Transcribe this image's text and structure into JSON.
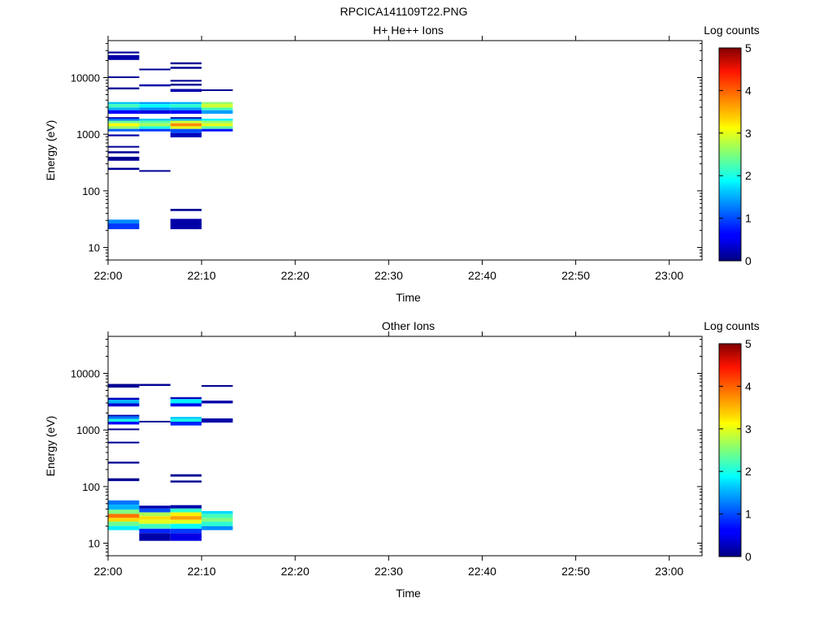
{
  "figure_title": "RPCICA141109T22.PNG",
  "chart_data": [
    {
      "type": "heatmap",
      "title": "H+ He++ Ions",
      "xlabel": "Time",
      "ylabel": "Energy (eV)",
      "yscale": "log",
      "ylim": [
        6,
        45000
      ],
      "xlim_minutes": [
        0,
        63.5
      ],
      "x_ticks": [
        "22:00",
        "22:10",
        "22:20",
        "22:30",
        "22:40",
        "22:50",
        "23:00"
      ],
      "y_ticks": [
        "10",
        "100",
        "1000",
        "10000"
      ],
      "colorbar": {
        "label": "Log counts",
        "min": 0,
        "max": 5,
        "ticks": [
          "0",
          "1",
          "2",
          "3",
          "4",
          "5"
        ],
        "colormap": "jet"
      },
      "cells": [
        {
          "t0": "22:00",
          "t1": "22:03:20",
          "e_lo": 26800,
          "e_hi": 28800,
          "log_counts": 0.1
        },
        {
          "t0": "22:00",
          "t1": "22:03:20",
          "e_lo": 20500,
          "e_hi": 25000,
          "log_counts": 0.2
        },
        {
          "t0": "22:00",
          "t1": "22:03:20",
          "e_lo": 9900,
          "e_hi": 10500,
          "log_counts": 0.1
        },
        {
          "t0": "22:00",
          "t1": "22:03:20",
          "e_lo": 6200,
          "e_hi": 6700,
          "log_counts": 0.1
        },
        {
          "t0": "22:00",
          "t1": "22:03:20",
          "e_lo": 3400,
          "e_hi": 3700,
          "log_counts": 1.6
        },
        {
          "t0": "22:00",
          "t1": "22:03:20",
          "e_lo": 2950,
          "e_hi": 3400,
          "log_counts": 2.2
        },
        {
          "t0": "22:00",
          "t1": "22:03:20",
          "e_lo": 2650,
          "e_hi": 2950,
          "log_counts": 1.5
        },
        {
          "t0": "22:00",
          "t1": "22:03:20",
          "e_lo": 2300,
          "e_hi": 2650,
          "log_counts": 0.6
        },
        {
          "t0": "22:00",
          "t1": "22:03:20",
          "e_lo": 1880,
          "e_hi": 2000,
          "log_counts": 0.3
        },
        {
          "t0": "22:00",
          "t1": "22:03:20",
          "e_lo": 1730,
          "e_hi": 1880,
          "log_counts": 1.2
        },
        {
          "t0": "22:00",
          "t1": "22:03:20",
          "e_lo": 1560,
          "e_hi": 1730,
          "log_counts": 2.4
        },
        {
          "t0": "22:00",
          "t1": "22:03:20",
          "e_lo": 1380,
          "e_hi": 1560,
          "log_counts": 3.1
        },
        {
          "t0": "22:00",
          "t1": "22:03:20",
          "e_lo": 1240,
          "e_hi": 1380,
          "log_counts": 2.6
        },
        {
          "t0": "22:00",
          "t1": "22:03:20",
          "e_lo": 1120,
          "e_hi": 1240,
          "log_counts": 1.1
        },
        {
          "t0": "22:00",
          "t1": "22:03:20",
          "e_lo": 920,
          "e_hi": 990,
          "log_counts": 0.2
        },
        {
          "t0": "22:00",
          "t1": "22:03:20",
          "e_lo": 580,
          "e_hi": 620,
          "log_counts": 0.1
        },
        {
          "t0": "22:00",
          "t1": "22:03:20",
          "e_lo": 460,
          "e_hi": 500,
          "log_counts": 0.1
        },
        {
          "t0": "22:00",
          "t1": "22:03:20",
          "e_lo": 340,
          "e_hi": 400,
          "log_counts": 0.1
        },
        {
          "t0": "22:00",
          "t1": "22:03:20",
          "e_lo": 235,
          "e_hi": 255,
          "log_counts": 0.1
        },
        {
          "t0": "22:00",
          "t1": "22:03:20",
          "e_lo": 26.5,
          "e_hi": 31,
          "log_counts": 1.3
        },
        {
          "t0": "22:00",
          "t1": "22:03:20",
          "e_lo": 21,
          "e_hi": 26.5,
          "log_counts": 0.9
        },
        {
          "t0": "22:03:20",
          "t1": "22:06:40",
          "e_lo": 13600,
          "e_hi": 14400,
          "log_counts": 0.1
        },
        {
          "t0": "22:03:20",
          "t1": "22:06:40",
          "e_lo": 7000,
          "e_hi": 7600,
          "log_counts": 0.2
        },
        {
          "t0": "22:03:20",
          "t1": "22:06:40",
          "e_lo": 3400,
          "e_hi": 3700,
          "log_counts": 1.4
        },
        {
          "t0": "22:03:20",
          "t1": "22:06:40",
          "e_lo": 2950,
          "e_hi": 3400,
          "log_counts": 1.9
        },
        {
          "t0": "22:03:20",
          "t1": "22:06:40",
          "e_lo": 2650,
          "e_hi": 2950,
          "log_counts": 1.3
        },
        {
          "t0": "22:03:20",
          "t1": "22:06:40",
          "e_lo": 2300,
          "e_hi": 2650,
          "log_counts": 0.5
        },
        {
          "t0": "22:03:20",
          "t1": "22:06:40",
          "e_lo": 1730,
          "e_hi": 1880,
          "log_counts": 1.6
        },
        {
          "t0": "22:03:20",
          "t1": "22:06:40",
          "e_lo": 1560,
          "e_hi": 1730,
          "log_counts": 2.3
        },
        {
          "t0": "22:03:20",
          "t1": "22:06:40",
          "e_lo": 1380,
          "e_hi": 1560,
          "log_counts": 2.7
        },
        {
          "t0": "22:03:20",
          "t1": "22:06:40",
          "e_lo": 1240,
          "e_hi": 1380,
          "log_counts": 2.0
        },
        {
          "t0": "22:03:20",
          "t1": "22:06:40",
          "e_lo": 1120,
          "e_hi": 1240,
          "log_counts": 0.9
        },
        {
          "t0": "22:03:20",
          "t1": "22:06:40",
          "e_lo": 218,
          "e_hi": 232,
          "log_counts": 0.1
        },
        {
          "t0": "22:06:40",
          "t1": "22:10",
          "e_lo": 17200,
          "e_hi": 18600,
          "log_counts": 0.1
        },
        {
          "t0": "22:06:40",
          "t1": "22:10",
          "e_lo": 14300,
          "e_hi": 15500,
          "log_counts": 0.1
        },
        {
          "t0": "22:06:40",
          "t1": "22:10",
          "e_lo": 8500,
          "e_hi": 9100,
          "log_counts": 0.1
        },
        {
          "t0": "22:06:40",
          "t1": "22:10",
          "e_lo": 7200,
          "e_hi": 7800,
          "log_counts": 0.1
        },
        {
          "t0": "22:06:40",
          "t1": "22:10",
          "e_lo": 5600,
          "e_hi": 6300,
          "log_counts": 0.2
        },
        {
          "t0": "22:06:40",
          "t1": "22:10",
          "e_lo": 3400,
          "e_hi": 3700,
          "log_counts": 1.5
        },
        {
          "t0": "22:06:40",
          "t1": "22:10",
          "e_lo": 2950,
          "e_hi": 3400,
          "log_counts": 2.1
        },
        {
          "t0": "22:06:40",
          "t1": "22:10",
          "e_lo": 2650,
          "e_hi": 2950,
          "log_counts": 1.4
        },
        {
          "t0": "22:06:40",
          "t1": "22:10",
          "e_lo": 2300,
          "e_hi": 2650,
          "log_counts": 0.6
        },
        {
          "t0": "22:06:40",
          "t1": "22:10",
          "e_lo": 1880,
          "e_hi": 2000,
          "log_counts": 0.2
        },
        {
          "t0": "22:06:40",
          "t1": "22:10",
          "e_lo": 1730,
          "e_hi": 1880,
          "log_counts": 1.5
        },
        {
          "t0": "22:06:40",
          "t1": "22:10",
          "e_lo": 1560,
          "e_hi": 1730,
          "log_counts": 2.9
        },
        {
          "t0": "22:06:40",
          "t1": "22:10",
          "e_lo": 1380,
          "e_hi": 1560,
          "log_counts": 3.7
        },
        {
          "t0": "22:06:40",
          "t1": "22:10",
          "e_lo": 1240,
          "e_hi": 1380,
          "log_counts": 3.0
        },
        {
          "t0": "22:06:40",
          "t1": "22:10",
          "e_lo": 1050,
          "e_hi": 1240,
          "log_counts": 1.0
        },
        {
          "t0": "22:06:40",
          "t1": "22:10",
          "e_lo": 880,
          "e_hi": 1050,
          "log_counts": 0.3
        },
        {
          "t0": "22:06:40",
          "t1": "22:10",
          "e_lo": 44,
          "e_hi": 48,
          "log_counts": 0.1
        },
        {
          "t0": "22:06:40",
          "t1": "22:10",
          "e_lo": 21,
          "e_hi": 32,
          "log_counts": 0.2
        },
        {
          "t0": "22:10",
          "t1": "22:13:20",
          "e_lo": 5800,
          "e_hi": 6200,
          "log_counts": 0.1
        },
        {
          "t0": "22:10",
          "t1": "22:13:20",
          "e_lo": 3400,
          "e_hi": 3700,
          "log_counts": 2.6
        },
        {
          "t0": "22:10",
          "t1": "22:13:20",
          "e_lo": 2950,
          "e_hi": 3400,
          "log_counts": 2.9
        },
        {
          "t0": "22:10",
          "t1": "22:13:20",
          "e_lo": 2650,
          "e_hi": 2950,
          "log_counts": 2.2
        },
        {
          "t0": "22:10",
          "t1": "22:13:20",
          "e_lo": 2300,
          "e_hi": 2650,
          "log_counts": 1.4
        },
        {
          "t0": "22:10",
          "t1": "22:13:20",
          "e_lo": 1730,
          "e_hi": 1880,
          "log_counts": 1.8
        },
        {
          "t0": "22:10",
          "t1": "22:13:20",
          "e_lo": 1560,
          "e_hi": 1730,
          "log_counts": 2.6
        },
        {
          "t0": "22:10",
          "t1": "22:13:20",
          "e_lo": 1380,
          "e_hi": 1560,
          "log_counts": 3.0
        },
        {
          "t0": "22:10",
          "t1": "22:13:20",
          "e_lo": 1240,
          "e_hi": 1380,
          "log_counts": 2.3
        },
        {
          "t0": "22:10",
          "t1": "22:13:20",
          "e_lo": 1120,
          "e_hi": 1240,
          "log_counts": 0.7
        }
      ]
    },
    {
      "type": "heatmap",
      "title": "Other Ions",
      "xlabel": "Time",
      "ylabel": "Energy (eV)",
      "yscale": "log",
      "ylim": [
        6,
        45000
      ],
      "xlim_minutes": [
        0,
        63.5
      ],
      "x_ticks": [
        "22:00",
        "22:10",
        "22:20",
        "22:30",
        "22:40",
        "22:50",
        "23:00"
      ],
      "y_ticks": [
        "10",
        "100",
        "1000",
        "10000"
      ],
      "colorbar": {
        "label": "Log counts",
        "min": 0,
        "max": 5,
        "ticks": [
          "0",
          "1",
          "2",
          "3",
          "4",
          "5"
        ],
        "colormap": "jet"
      },
      "cells": [
        {
          "t0": "22:00",
          "t1": "22:03:20",
          "e_lo": 5600,
          "e_hi": 6500,
          "log_counts": 0.1
        },
        {
          "t0": "22:00",
          "t1": "22:03:20",
          "e_lo": 3400,
          "e_hi": 3700,
          "log_counts": 0.3
        },
        {
          "t0": "22:00",
          "t1": "22:03:20",
          "e_lo": 2950,
          "e_hi": 3400,
          "log_counts": 1.5
        },
        {
          "t0": "22:00",
          "t1": "22:03:20",
          "e_lo": 2600,
          "e_hi": 2950,
          "log_counts": 0.4
        },
        {
          "t0": "22:00",
          "t1": "22:03:20",
          "e_lo": 1750,
          "e_hi": 1850,
          "log_counts": 0.2
        },
        {
          "t0": "22:00",
          "t1": "22:03:20",
          "e_lo": 1560,
          "e_hi": 1750,
          "log_counts": 1.2
        },
        {
          "t0": "22:00",
          "t1": "22:03:20",
          "e_lo": 1400,
          "e_hi": 1560,
          "log_counts": 2.0
        },
        {
          "t0": "22:00",
          "t1": "22:03:20",
          "e_lo": 1250,
          "e_hi": 1400,
          "log_counts": 0.6
        },
        {
          "t0": "22:00",
          "t1": "22:03:20",
          "e_lo": 1000,
          "e_hi": 1060,
          "log_counts": 0.1
        },
        {
          "t0": "22:00",
          "t1": "22:03:20",
          "e_lo": 580,
          "e_hi": 620,
          "log_counts": 0.1
        },
        {
          "t0": "22:00",
          "t1": "22:03:20",
          "e_lo": 255,
          "e_hi": 275,
          "log_counts": 0.1
        },
        {
          "t0": "22:00",
          "t1": "22:03:20",
          "e_lo": 125,
          "e_hi": 140,
          "log_counts": 0.1
        },
        {
          "t0": "22:00",
          "t1": "22:03:20",
          "e_lo": 48,
          "e_hi": 57,
          "log_counts": 1.2
        },
        {
          "t0": "22:00",
          "t1": "22:03:20",
          "e_lo": 39,
          "e_hi": 48,
          "log_counts": 1.5
        },
        {
          "t0": "22:00",
          "t1": "22:03:20",
          "e_lo": 33,
          "e_hi": 39,
          "log_counts": 2.5
        },
        {
          "t0": "22:00",
          "t1": "22:03:20",
          "e_lo": 28,
          "e_hi": 33,
          "log_counts": 3.8
        },
        {
          "t0": "22:00",
          "t1": "22:03:20",
          "e_lo": 24,
          "e_hi": 28,
          "log_counts": 3.3
        },
        {
          "t0": "22:00",
          "t1": "22:03:20",
          "e_lo": 20,
          "e_hi": 24,
          "log_counts": 2.4
        },
        {
          "t0": "22:00",
          "t1": "22:03:20",
          "e_lo": 17,
          "e_hi": 20,
          "log_counts": 1.8
        },
        {
          "t0": "22:03:20",
          "t1": "22:06:40",
          "e_lo": 6000,
          "e_hi": 6500,
          "log_counts": 0.1
        },
        {
          "t0": "22:03:20",
          "t1": "22:06:40",
          "e_lo": 1380,
          "e_hi": 1450,
          "log_counts": 0.1
        },
        {
          "t0": "22:03:20",
          "t1": "22:06:40",
          "e_lo": 41,
          "e_hi": 46,
          "log_counts": 0.2
        },
        {
          "t0": "22:03:20",
          "t1": "22:06:40",
          "e_lo": 35,
          "e_hi": 41,
          "log_counts": 1.0
        },
        {
          "t0": "22:03:20",
          "t1": "22:06:40",
          "e_lo": 30,
          "e_hi": 35,
          "log_counts": 2.7
        },
        {
          "t0": "22:03:20",
          "t1": "22:06:40",
          "e_lo": 26,
          "e_hi": 30,
          "log_counts": 3.3
        },
        {
          "t0": "22:03:20",
          "t1": "22:06:40",
          "e_lo": 22,
          "e_hi": 26,
          "log_counts": 3.0
        },
        {
          "t0": "22:03:20",
          "t1": "22:06:40",
          "e_lo": 18,
          "e_hi": 22,
          "log_counts": 2.2
        },
        {
          "t0": "22:03:20",
          "t1": "22:06:40",
          "e_lo": 15,
          "e_hi": 18,
          "log_counts": 0.8
        },
        {
          "t0": "22:03:20",
          "t1": "22:06:40",
          "e_lo": 11,
          "e_hi": 15,
          "log_counts": 0.2
        },
        {
          "t0": "22:06:40",
          "t1": "22:10",
          "e_lo": 3500,
          "e_hi": 3800,
          "log_counts": 0.3
        },
        {
          "t0": "22:06:40",
          "t1": "22:10",
          "e_lo": 2950,
          "e_hi": 3500,
          "log_counts": 1.8
        },
        {
          "t0": "22:06:40",
          "t1": "22:10",
          "e_lo": 2600,
          "e_hi": 2950,
          "log_counts": 0.5
        },
        {
          "t0": "22:06:40",
          "t1": "22:10",
          "e_lo": 1560,
          "e_hi": 1700,
          "log_counts": 1.6
        },
        {
          "t0": "22:06:40",
          "t1": "22:10",
          "e_lo": 1400,
          "e_hi": 1560,
          "log_counts": 2.0
        },
        {
          "t0": "22:06:40",
          "t1": "22:10",
          "e_lo": 1200,
          "e_hi": 1400,
          "log_counts": 0.8
        },
        {
          "t0": "22:06:40",
          "t1": "22:10",
          "e_lo": 150,
          "e_hi": 165,
          "log_counts": 0.1
        },
        {
          "t0": "22:06:40",
          "t1": "22:10",
          "e_lo": 118,
          "e_hi": 128,
          "log_counts": 0.1
        },
        {
          "t0": "22:06:40",
          "t1": "22:10",
          "e_lo": 41,
          "e_hi": 47,
          "log_counts": 0.2
        },
        {
          "t0": "22:06:40",
          "t1": "22:10",
          "e_lo": 35,
          "e_hi": 41,
          "log_counts": 2.1
        },
        {
          "t0": "22:06:40",
          "t1": "22:10",
          "e_lo": 30,
          "e_hi": 35,
          "log_counts": 3.2
        },
        {
          "t0": "22:06:40",
          "t1": "22:10",
          "e_lo": 26,
          "e_hi": 30,
          "log_counts": 3.6
        },
        {
          "t0": "22:06:40",
          "t1": "22:10",
          "e_lo": 22,
          "e_hi": 26,
          "log_counts": 3.0
        },
        {
          "t0": "22:06:40",
          "t1": "22:10",
          "e_lo": 18,
          "e_hi": 22,
          "log_counts": 1.9
        },
        {
          "t0": "22:06:40",
          "t1": "22:10",
          "e_lo": 15,
          "e_hi": 18,
          "log_counts": 0.9
        },
        {
          "t0": "22:06:40",
          "t1": "22:10",
          "e_lo": 11,
          "e_hi": 15,
          "log_counts": 0.5
        },
        {
          "t0": "22:10",
          "t1": "22:13:20",
          "e_lo": 5800,
          "e_hi": 6200,
          "log_counts": 0.1
        },
        {
          "t0": "22:10",
          "t1": "22:13:20",
          "e_lo": 2950,
          "e_hi": 3300,
          "log_counts": 0.2
        },
        {
          "t0": "22:10",
          "t1": "22:13:20",
          "e_lo": 1350,
          "e_hi": 1600,
          "log_counts": 0.2
        },
        {
          "t0": "22:10",
          "t1": "22:13:20",
          "e_lo": 33,
          "e_hi": 37,
          "log_counts": 1.7
        },
        {
          "t0": "22:10",
          "t1": "22:13:20",
          "e_lo": 28,
          "e_hi": 33,
          "log_counts": 2.2
        },
        {
          "t0": "22:10",
          "t1": "22:13:20",
          "e_lo": 24,
          "e_hi": 28,
          "log_counts": 2.5
        },
        {
          "t0": "22:10",
          "t1": "22:13:20",
          "e_lo": 20,
          "e_hi": 24,
          "log_counts": 2.1
        },
        {
          "t0": "22:10",
          "t1": "22:13:20",
          "e_lo": 17,
          "e_hi": 20,
          "log_counts": 1.3
        }
      ]
    }
  ]
}
